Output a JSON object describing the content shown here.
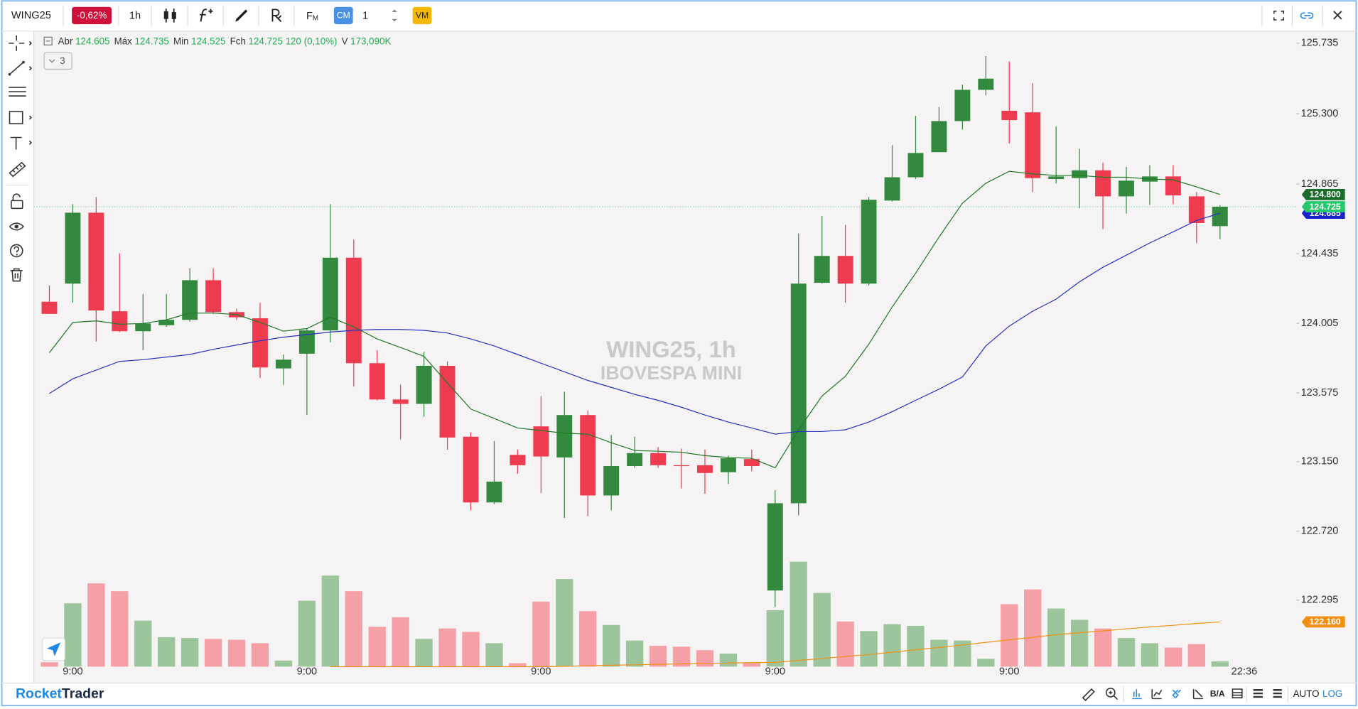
{
  "ui": {
    "symbol": "WING25",
    "change": "-0,62%",
    "interval": "1h",
    "fm": "F",
    "fm_sub": "M",
    "cm": "CM",
    "qty": "1",
    "vm": "VM",
    "collapse_count": "3",
    "brand_a": "Rocket",
    "brand_b": "Trader",
    "ba": "B/A",
    "auto": "AUTO",
    "log": "LOG"
  },
  "chart_data": {
    "type": "candlestick",
    "watermark_title": "WING25, 1h",
    "watermark_subtitle": "IBOVESPA MINI",
    "legend": [
      {
        "label": "Abr",
        "value": "124.605"
      },
      {
        "label": "Máx",
        "value": "124.735"
      },
      {
        "label": "Min",
        "value": "124.525"
      },
      {
        "label": "Fch",
        "value": "124.725 120 (0,10%)"
      },
      {
        "label": "V",
        "value": "173,090K"
      }
    ],
    "current_time": "22:36",
    "categories": [
      null,
      "9:00",
      null,
      null,
      null,
      null,
      null,
      null,
      null,
      null,
      null,
      "9:00",
      null,
      null,
      null,
      null,
      null,
      null,
      null,
      null,
      null,
      "9:00",
      null,
      null,
      null,
      null,
      null,
      null,
      null,
      null,
      null,
      "9:00",
      null,
      null,
      null,
      null,
      null,
      null,
      null,
      null,
      null,
      "9:00",
      null,
      null,
      null,
      null,
      null,
      null,
      null,
      null,
      null
    ],
    "open": [
      124.138,
      124.25,
      124.688,
      124.079,
      123.956,
      123.993,
      124.026,
      124.271,
      124.074,
      124.036,
      123.726,
      123.817,
      123.961,
      124.41,
      123.758,
      123.534,
      123.507,
      123.742,
      123.304,
      122.898,
      123.192,
      123.368,
      123.176,
      123.438,
      122.941,
      123.123,
      123.203,
      123.128,
      123.128,
      123.085,
      123.166,
      122.354,
      122.893,
      124.255,
      124.421,
      124.25,
      124.763,
      124.907,
      125.062,
      125.254,
      125.447,
      125.318,
      125.308,
      124.896,
      124.902,
      124.95,
      124.789,
      124.88,
      124.912,
      124.789,
      124.605
    ],
    "high": [
      124.239,
      124.741,
      124.784,
      124.437,
      124.186,
      124.186,
      124.346,
      124.346,
      124.095,
      124.132,
      123.812,
      123.972,
      124.741,
      124.522,
      123.839,
      123.625,
      123.828,
      123.769,
      123.331,
      123.278,
      123.224,
      123.555,
      123.582,
      123.465,
      123.315,
      123.304,
      123.24,
      123.23,
      123.224,
      123.187,
      123.224,
      122.973,
      124.56,
      124.667,
      124.613,
      124.784,
      125.105,
      125.286,
      125.34,
      125.479,
      125.655,
      125.623,
      125.489,
      125.222,
      125.083,
      124.998,
      124.971,
      124.982,
      124.982,
      124.816,
      124.735
    ],
    "low": [
      124.063,
      124.132,
      123.892,
      123.951,
      123.839,
      123.983,
      124.015,
      124.063,
      124.026,
      123.668,
      123.625,
      123.438,
      123.887,
      123.614,
      123.529,
      123.288,
      123.427,
      123.224,
      122.85,
      122.888,
      123.075,
      122.957,
      122.802,
      122.813,
      122.85,
      123.112,
      123.112,
      122.984,
      122.952,
      123.011,
      123.091,
      122.252,
      122.818,
      124.25,
      124.132,
      124.239,
      124.757,
      124.896,
      125.062,
      125.201,
      125.414,
      125.115,
      124.816,
      124.87,
      124.715,
      124.586,
      124.683,
      124.736,
      124.741,
      124.501,
      124.525
    ],
    "close": [
      124.063,
      124.688,
      124.084,
      123.956,
      124.004,
      124.026,
      124.271,
      124.074,
      124.042,
      123.732,
      123.78,
      123.961,
      124.41,
      123.758,
      123.534,
      123.507,
      123.742,
      123.299,
      122.898,
      123.027,
      123.128,
      123.182,
      123.438,
      122.941,
      123.123,
      123.203,
      123.128,
      123.123,
      123.08,
      123.171,
      123.123,
      122.893,
      124.25,
      124.421,
      124.25,
      124.768,
      124.907,
      125.057,
      125.254,
      125.447,
      125.516,
      125.26,
      124.902,
      124.912,
      124.95,
      124.789,
      124.886,
      124.912,
      124.795,
      124.624,
      124.725
    ],
    "volume": [
      144000,
      2106000,
      2770000,
      2510000,
      1529000,
      981000,
      952000,
      923000,
      894000,
      779000,
      202000,
      2193000,
      3029000,
      2510000,
      1327000,
      1644000,
      923000,
      1269000,
      1154000,
      779000,
      115000,
      2164000,
      2914000,
      1846000,
      1385000,
      866000,
      692000,
      664000,
      548000,
      433000,
      115000,
      1875000,
      3491000,
      2452000,
      1500000,
      1183000,
      1414000,
      1356000,
      894000,
      866000,
      260000,
      2077000,
      2568000,
      1933000,
      1558000,
      1269000,
      952000,
      779000,
      635000,
      750000,
      173090
    ],
    "volume_lim": [
      0,
      4200000
    ],
    "up_color": "#338a3e",
    "down_color": "#ef3b4f",
    "volume_up_color": "#9cc59c",
    "volume_down_color": "#f4a0a6",
    "series": [
      {
        "color": "#1f7a26",
        "values": [
          123.823,
          124.01,
          124.02,
          123.999,
          124.004,
          124.026,
          124.068,
          124.068,
          124.058,
          124.01,
          123.956,
          123.972,
          124.042,
          123.983,
          123.908,
          123.855,
          123.801,
          123.636,
          123.475,
          123.417,
          123.358,
          123.342,
          123.326,
          123.32,
          123.267,
          123.219,
          123.214,
          123.208,
          123.187,
          123.176,
          123.171,
          123.112,
          123.347,
          123.555,
          123.678,
          123.876,
          124.106,
          124.314,
          124.538,
          124.747,
          124.87,
          124.944,
          124.928,
          124.918,
          124.918,
          124.907,
          124.907,
          124.896,
          124.891,
          124.848,
          124.8
        ]
      },
      {
        "color": "#2a33c4",
        "values": [
          123.571,
          123.662,
          123.716,
          123.769,
          123.78,
          123.796,
          123.812,
          123.844,
          123.871,
          123.897,
          123.919,
          123.935,
          123.951,
          123.961,
          123.967,
          123.967,
          123.961,
          123.945,
          123.908,
          123.865,
          123.812,
          123.758,
          123.705,
          123.652,
          123.609,
          123.566,
          123.529,
          123.486,
          123.438,
          123.395,
          123.358,
          123.32,
          123.336,
          123.336,
          123.347,
          123.395,
          123.459,
          123.529,
          123.598,
          123.673,
          123.865,
          123.988,
          124.079,
          124.154,
          124.261,
          124.351,
          124.426,
          124.501,
          124.57,
          124.64,
          124.685
        ]
      },
      {
        "color": "#f29111",
        "values": [
          null,
          null,
          null,
          null,
          null,
          null,
          null,
          null,
          null,
          null,
          null,
          null,
          121.883,
          121.883,
          121.883,
          121.883,
          121.883,
          121.883,
          121.883,
          121.883,
          121.883,
          121.883,
          121.886,
          121.889,
          121.892,
          121.895,
          121.898,
          121.901,
          121.904,
          121.906,
          121.908,
          121.91,
          121.922,
          121.934,
          121.946,
          121.958,
          121.973,
          121.988,
          122.002,
          122.017,
          122.033,
          122.049,
          122.065,
          122.081,
          122.093,
          122.105,
          122.117,
          122.129,
          122.139,
          122.15,
          122.16
        ]
      }
    ],
    "price_tags": [
      {
        "value": 122.16,
        "label": "122.160",
        "color": "#f29111"
      },
      {
        "value": 124.685,
        "label": "124.685",
        "color": "#1a23c7"
      },
      {
        "value": 124.725,
        "label": "124.725",
        "color": "#23c96b",
        "line": true
      },
      {
        "value": 124.8,
        "label": "124.800",
        "color": "#1b6b2a"
      }
    ],
    "ylim": [
      121.85,
      125.8
    ],
    "yticks": [
      125.735,
      {
        "value": 125.3,
        "label": "125.300"
      },
      124.865,
      124.435,
      124.005,
      123.575,
      {
        "value": 123.15,
        "label": "123.150"
      },
      {
        "value": 122.72,
        "label": "122.720"
      },
      122.295
    ],
    "grid": false
  }
}
